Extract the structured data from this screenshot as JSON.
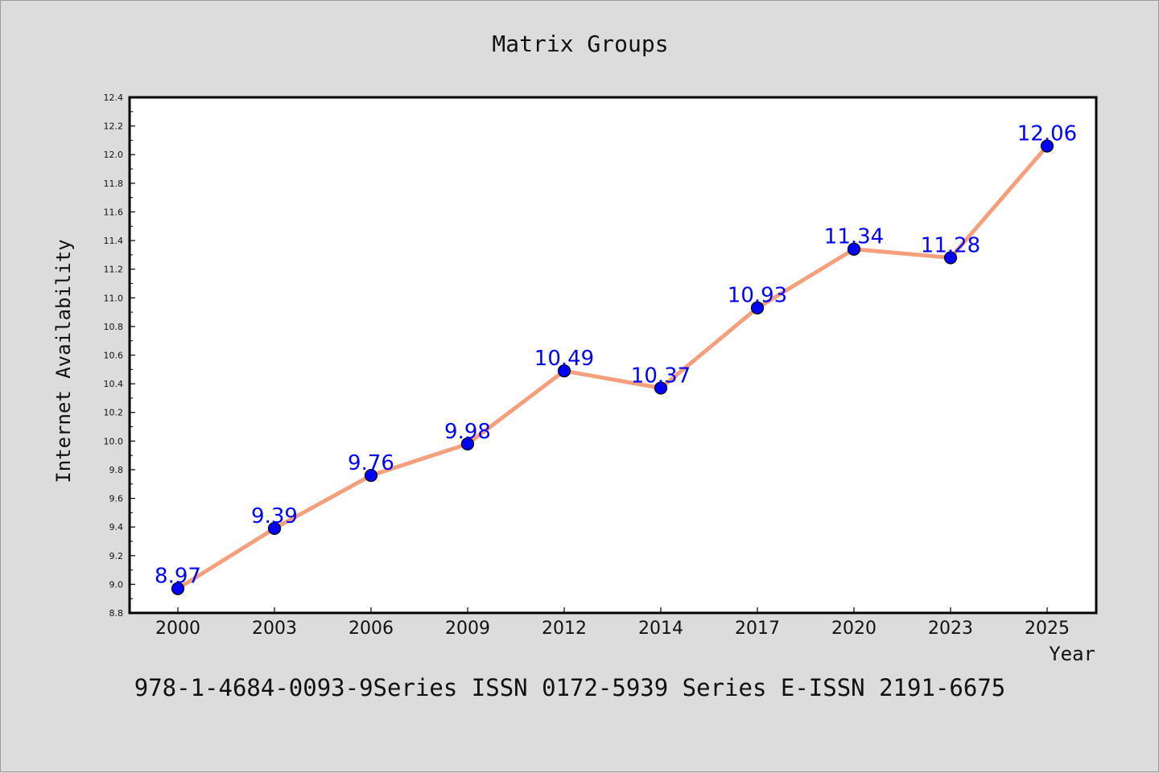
{
  "chart_data": {
    "type": "line",
    "title": "Matrix Groups",
    "xlabel": "Year",
    "ylabel": "Internet Availability",
    "categories": [
      "2000",
      "2003",
      "2006",
      "2009",
      "2012",
      "2014",
      "2017",
      "2020",
      "2023",
      "2025"
    ],
    "series": [
      {
        "values": [
          8.97,
          9.39,
          9.76,
          9.98,
          10.49,
          10.37,
          10.93,
          11.34,
          11.28,
          12.06
        ],
        "labels": [
          "8.97",
          "9.39",
          "9.76",
          "9.98",
          "10.49",
          "10.37",
          "10.93",
          "11.34",
          "11.28",
          "12.06"
        ],
        "line_color": "#f4a07c",
        "marker_color": "#0000ff"
      }
    ],
    "ylim": [
      8.8,
      12.4
    ],
    "yticks": [
      "8.8",
      "9.0",
      "9.2",
      "9.4",
      "9.6",
      "9.8",
      "10.0",
      "10.2",
      "10.4",
      "10.6",
      "10.8",
      "11.0",
      "11.2",
      "11.4",
      "11.6",
      "11.8",
      "12.0",
      "12.2",
      "12.4"
    ],
    "grid": false,
    "footer": "978-1-4684-0093-9Series ISSN 0172-5939 Series E-ISSN 2191-6675"
  },
  "colors": {
    "background": "#dcdcdc",
    "plot_background": "#ffffff",
    "line": "#f4a07c",
    "marker": "#0000ff",
    "data_label": "#0000ff"
  }
}
